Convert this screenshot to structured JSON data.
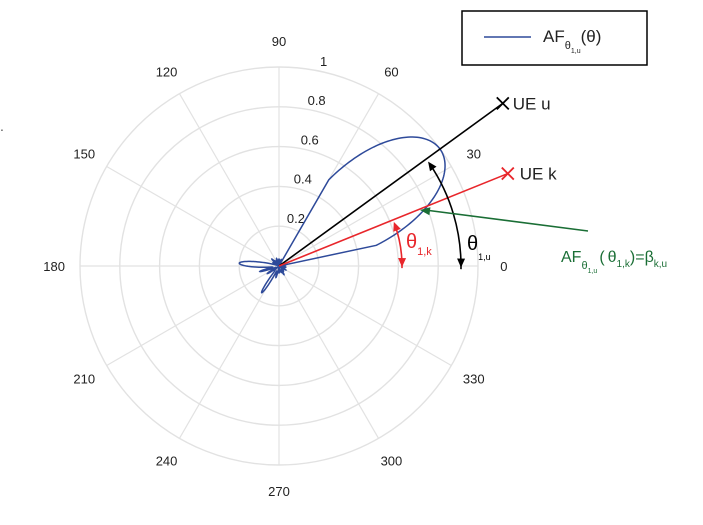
{
  "chart_data": {
    "type": "polar-line",
    "title": "",
    "angle_unit": "degrees",
    "angle_ticks": [
      0,
      30,
      60,
      90,
      120,
      150,
      180,
      210,
      240,
      270,
      300,
      330
    ],
    "angle_tick_labels": [
      "0",
      "30",
      "60",
      "90",
      "120",
      "150",
      "180",
      "210",
      "240",
      "270",
      "300",
      "330"
    ],
    "radial_range": [
      0,
      1
    ],
    "radial_ticks": [
      0.2,
      0.4,
      0.6,
      0.8,
      1
    ],
    "radial_tick_labels": [
      "0.2",
      "0.4",
      "0.6",
      "0.8",
      "1"
    ],
    "radial_tick_angle": 80,
    "grid": true,
    "legend": {
      "position": "top-right"
    },
    "series": [
      {
        "name": "AF_θ1,u(θ)",
        "color": "#2e4a9a",
        "main_lobe": {
          "peak_angle": 36,
          "peak_value": 1.0,
          "beamwidth_deg": 24
        },
        "side_lobes": [
          {
            "angle": 176,
            "value": 0.2,
            "width": 16
          },
          {
            "angle": 237,
            "value": 0.16,
            "width": 10
          },
          {
            "angle": 196,
            "value": 0.1,
            "width": 8
          },
          {
            "angle": 213,
            "value": 0.07,
            "width": 8
          },
          {
            "angle": 255,
            "value": 0.06,
            "width": 8
          },
          {
            "angle": 136,
            "value": 0.05,
            "width": 8
          },
          {
            "angle": 108,
            "value": 0.04,
            "width": 8
          },
          {
            "angle": 300,
            "value": 0.05,
            "width": 8
          },
          {
            "angle": 330,
            "value": 0.04,
            "width": 8
          }
        ]
      }
    ],
    "annotations": {
      "ue_u": {
        "angle": 36,
        "label": "UE u",
        "color": "#000000"
      },
      "ue_k": {
        "angle": 22,
        "label": "UE k",
        "color": "#e8262b"
      },
      "theta_u": {
        "symbol": "θ",
        "sub": "1,u",
        "color": "#000000"
      },
      "theta_k": {
        "symbol": "θ",
        "sub": "1,k",
        "color": "#e8262b"
      },
      "af_eq": {
        "af": "AF",
        "af_sub": "θ",
        "af_subsub": "1,u",
        "open": "(",
        "theta": "θ",
        "theta_sub": "1,k",
        "close": ")=β",
        "beta_sub": "k,u",
        "color": "#1a6e35"
      }
    }
  },
  "legend_label": {
    "af": "AF",
    "sub": "θ",
    "subsub": "1,u",
    "arg": "(θ)"
  },
  "stray_mark": "."
}
